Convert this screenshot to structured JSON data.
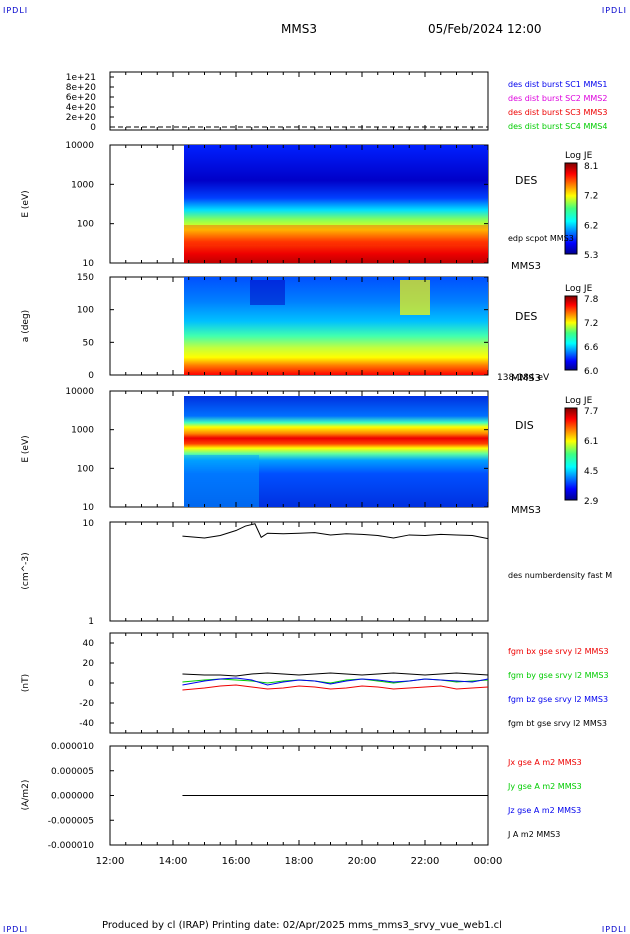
{
  "corners": {
    "tl": "IPDLI",
    "tr": "IPDLI",
    "bl": "IPDLI",
    "br": "IPDLI"
  },
  "header": {
    "spacecraft": "MMS3",
    "datetime": "05/Feb/2024 12:00"
  },
  "footer": {
    "text": "Produced by cl (IRAP)    Printing date: 02/Apr/2025    mms_mms3_srvy_vue_web1.cl"
  },
  "chart_data": [
    {
      "type": "line",
      "ylim": [
        0,
        1e+21
      ],
      "yticks": [
        "0",
        "2e+20",
        "4e+20",
        "6e+20",
        "8e+20",
        "1e+21"
      ],
      "legend": [
        {
          "name": "des dist burst SC1 MMS1",
          "color": "#0000ee"
        },
        {
          "name": "des dist burst SC2 MMS2",
          "color": "#dd00dd"
        },
        {
          "name": "des dist burst SC3 MMS3",
          "color": "#ee0000"
        },
        {
          "name": "des dist burst SC4 MMS4",
          "color": "#00cc00"
        }
      ]
    },
    {
      "type": "heatmap",
      "ylabel": "E (eV)",
      "yticks": [
        "10",
        "100",
        "1000",
        "10000"
      ],
      "label": "DES",
      "sublabel": "edp scpot MMS3",
      "sc": "MMS3",
      "colorbar": {
        "title": "Log JE",
        "max": "8.1",
        "mid1": "7.2",
        "mid2": "6.2",
        "min": "5.3"
      }
    },
    {
      "type": "heatmap",
      "ylabel": "a (deg)",
      "yticks": [
        "0",
        "50",
        "100",
        "150"
      ],
      "label": "DES",
      "sc": "MMS3",
      "range": "138-184 eV",
      "colorbar": {
        "title": "Log JE",
        "max": "7.8",
        "mid1": "7.2",
        "mid2": "6.6",
        "min": "6.0"
      }
    },
    {
      "type": "heatmap",
      "ylabel": "E (eV)",
      "yticks": [
        "10",
        "100",
        "1000",
        "10000"
      ],
      "label": "DIS",
      "sc": "MMS3",
      "colorbar": {
        "title": "Log JE",
        "max": "7.7",
        "mid1": "6.1",
        "mid2": "4.5",
        "min": "2.9"
      }
    },
    {
      "type": "line",
      "ylabel": "(cm^-3)",
      "yticks": [
        "1",
        "10"
      ],
      "series": [
        {
          "name": "des numberdensity fast M",
          "color": "#000000",
          "x": [
            14.3,
            15.0,
            15.5,
            16.0,
            16.3,
            16.6,
            16.8,
            17.0,
            17.5,
            18.0,
            18.5,
            19.0,
            19.5,
            20.0,
            20.5,
            21.0,
            21.5,
            22.0,
            22.5,
            23.0,
            23.5,
            24.0
          ],
          "values": [
            7.2,
            6.9,
            7.3,
            8.2,
            9.1,
            9.6,
            7.0,
            7.7,
            7.6,
            7.7,
            7.8,
            7.4,
            7.6,
            7.5,
            7.3,
            6.9,
            7.4,
            7.3,
            7.5,
            7.4,
            7.3,
            6.8
          ]
        }
      ]
    },
    {
      "type": "line",
      "ylabel": "(nT)",
      "ylim": [
        -50,
        50
      ],
      "yticks": [
        "-40",
        "-20",
        "0",
        "20",
        "40"
      ],
      "x": [
        14.3,
        15.0,
        15.5,
        16.0,
        16.5,
        17.0,
        17.5,
        18.0,
        18.5,
        19.0,
        19.5,
        20.0,
        20.5,
        21.0,
        21.5,
        22.0,
        22.5,
        23.0,
        23.5,
        24.0
      ],
      "series": [
        {
          "name": "fgm bx gse srvy l2 MMS3",
          "color": "#ee0000",
          "values": [
            -7,
            -5,
            -3,
            -2,
            -4,
            -6,
            -5,
            -3,
            -4,
            -6,
            -5,
            -3,
            -4,
            -6,
            -5,
            -4,
            -3,
            -6,
            -5,
            -4
          ]
        },
        {
          "name": "fgm by gse srvy l2 MMS3",
          "color": "#00cc00",
          "values": [
            1,
            3,
            4,
            3,
            2,
            0,
            2,
            3,
            2,
            0,
            3,
            4,
            2,
            0,
            2,
            4,
            3,
            1,
            2,
            3
          ]
        },
        {
          "name": "fgm bz gse srvy l2 MMS3",
          "color": "#0000ee",
          "values": [
            -2,
            2,
            4,
            5,
            3,
            -2,
            1,
            3,
            2,
            -1,
            2,
            4,
            3,
            1,
            2,
            4,
            3,
            2,
            1,
            4
          ]
        },
        {
          "name": "fgm bt gse srvy l2 MMS3",
          "color": "#000000",
          "values": [
            9,
            8,
            8,
            7,
            9,
            10,
            9,
            8,
            9,
            10,
            9,
            8,
            9,
            10,
            9,
            8,
            9,
            10,
            9,
            8
          ]
        }
      ]
    },
    {
      "type": "line",
      "ylabel": "(A/m2)",
      "ylim": [
        -1e-05,
        1e-05
      ],
      "yticks": [
        "-0.000010",
        "-0.000005",
        "0.000000",
        "0.000005",
        "0.000010"
      ],
      "series": [
        {
          "name": "Jx gse A m2 MMS3",
          "color": "#ee0000"
        },
        {
          "name": "Jy gse A m2 MMS3",
          "color": "#00cc00"
        },
        {
          "name": "Jz gse A m2 MMS3",
          "color": "#0000ee"
        },
        {
          "name": "J A m2 MMS3",
          "color": "#000000"
        }
      ]
    }
  ],
  "xaxis": {
    "ticks": [
      "12:00",
      "14:00",
      "16:00",
      "18:00",
      "20:00",
      "22:00",
      "00:00"
    ],
    "range": [
      12,
      24
    ]
  }
}
